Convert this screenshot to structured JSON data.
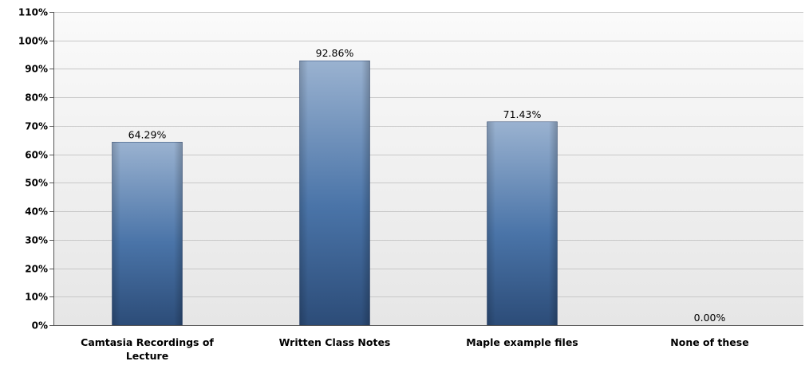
{
  "chart_data": {
    "type": "bar",
    "categories": [
      [
        "Camtasia Recordings of",
        "Lecture"
      ],
      [
        "Written Class Notes"
      ],
      [
        "Maple example files"
      ],
      [
        "None of these"
      ]
    ],
    "values": [
      64.29,
      92.86,
      71.43,
      0.0
    ],
    "value_labels": [
      "64.29%",
      "92.86%",
      "71.43%",
      "0.00%"
    ],
    "ylim": [
      0,
      110
    ],
    "yticks": [
      0,
      10,
      20,
      30,
      40,
      50,
      60,
      70,
      80,
      90,
      100,
      110
    ],
    "ytick_labels": [
      "0%",
      "10%",
      "20%",
      "30%",
      "40%",
      "50%",
      "60%",
      "70%",
      "80%",
      "90%",
      "100%",
      "110%"
    ],
    "grid": true,
    "legend": "none",
    "colors": {
      "bar_top": "#9ab2d0",
      "bar_mid": "#4a74a8",
      "bar_bottom": "#2c4c78",
      "plot_bg_top": "#fafafa",
      "plot_bg_bottom": "#e6e6e6",
      "grid": "#c8c8c8",
      "axis": "#555555"
    }
  }
}
